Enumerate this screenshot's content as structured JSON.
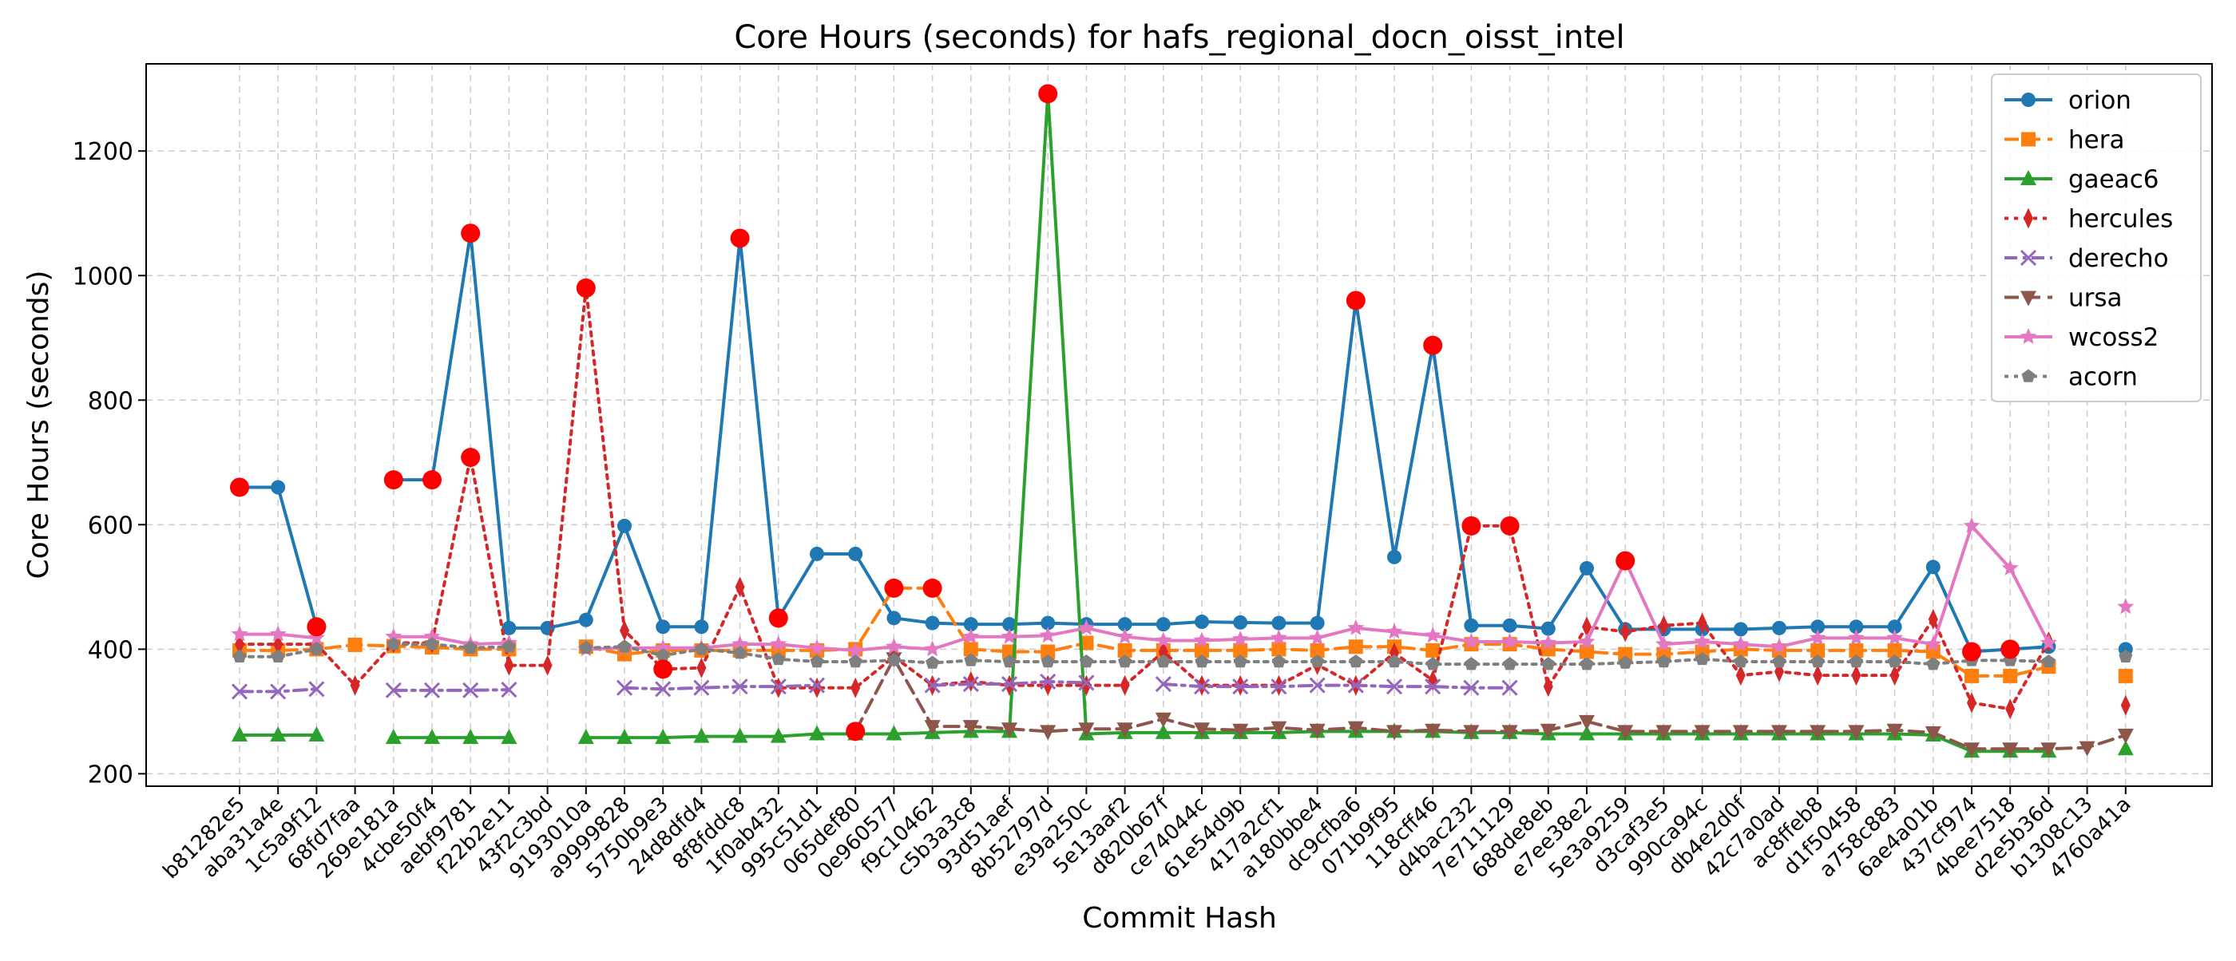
{
  "chart_data": {
    "type": "line",
    "title": "Core Hours (seconds) for hafs_regional_docn_oisst_intel",
    "xlabel": "Commit Hash",
    "ylabel": "Core Hours (seconds)",
    "ylim": [
      180,
      1340
    ],
    "yticks": [
      200,
      400,
      600,
      800,
      1000,
      1200
    ],
    "grid": true,
    "legend_position": "top-right",
    "categories": [
      "b81282e5",
      "aba31a4e",
      "1c5a9f12",
      "68fd7faa",
      "269e181a",
      "4cbe50f4",
      "aebf9781",
      "f22b2e11",
      "43f2c3bd",
      "9193010a",
      "a9999828",
      "5750b9e3",
      "24d8dfd4",
      "8f8fddc8",
      "1f0ab432",
      "995c51d1",
      "065def80",
      "0e960577",
      "f9c10462",
      "c5b3a3c8",
      "93d51aef",
      "8b52797d",
      "e39a250c",
      "5e13aaf2",
      "d820b67f",
      "ce74044c",
      "61e54d9b",
      "417a2cf1",
      "a180bbe4",
      "dc9cfba6",
      "071b9f95",
      "118cff46",
      "d4bac232",
      "7e711129",
      "688de8eb",
      "e7ee38e2",
      "5e3a9259",
      "d3caf3e5",
      "990ca94c",
      "db4e2d0f",
      "42c7a0ad",
      "ac8ffeb8",
      "d1f50458",
      "a758c883",
      "6ae4a01b",
      "437cf974",
      "4bee7518",
      "d2e5b36d",
      "b1308c13",
      "4760a41a"
    ],
    "series": [
      {
        "name": "orion",
        "color": "#1f77b4",
        "dash": "solid",
        "marker": "circle",
        "values": [
          660,
          660,
          436,
          null,
          672,
          672,
          1068,
          434,
          434,
          447,
          598,
          436,
          436,
          1060,
          450,
          553,
          553,
          450,
          442,
          440,
          440,
          442,
          440,
          440,
          440,
          444,
          443,
          442,
          442,
          960,
          548,
          888,
          438,
          438,
          433,
          530,
          432,
          432,
          432,
          432,
          434,
          436,
          436,
          436,
          532,
          396,
          400,
          404,
          null,
          400
        ]
      },
      {
        "name": "hera",
        "color": "#ff7f0e",
        "dash": "dashed",
        "marker": "square",
        "values": [
          398,
          398,
          400,
          407,
          405,
          403,
          400,
          400,
          null,
          404,
          392,
          398,
          398,
          398,
          398,
          398,
          400,
          498,
          498,
          400,
          396,
          396,
          410,
          398,
          398,
          398,
          398,
          400,
          398,
          404,
          404,
          398,
          408,
          408,
          400,
          396,
          392,
          392,
          396,
          400,
          398,
          398,
          398,
          398,
          396,
          357,
          357,
          372,
          null,
          357
        ]
      },
      {
        "name": "gaeac6",
        "color": "#2ca02c",
        "dash": "solid",
        "marker": "triangle-up",
        "values": [
          262,
          262,
          262,
          null,
          258,
          258,
          258,
          258,
          null,
          258,
          258,
          258,
          260,
          260,
          260,
          264,
          264,
          264,
          266,
          268,
          268,
          1292,
          264,
          266,
          266,
          266,
          266,
          266,
          268,
          268,
          268,
          268,
          266,
          266,
          264,
          264,
          264,
          264,
          264,
          264,
          264,
          264,
          264,
          264,
          262,
          236,
          236,
          236,
          null,
          240
        ]
      },
      {
        "name": "hercules",
        "color": "#d62728",
        "dash": "dotted",
        "marker": "diamond",
        "values": [
          408,
          408,
          408,
          342,
          410,
          410,
          708,
          374,
          374,
          980,
          430,
          368,
          370,
          500,
          338,
          338,
          338,
          388,
          342,
          348,
          342,
          342,
          342,
          342,
          396,
          342,
          342,
          342,
          375,
          342,
          394,
          350,
          598,
          598,
          340,
          436,
          428,
          438,
          442,
          358,
          364,
          358,
          358,
          358,
          448,
          314,
          304,
          412,
          null,
          310
        ]
      },
      {
        "name": "derecho",
        "color": "#9467bd",
        "dash": "dashdot",
        "marker": "x",
        "values": [
          332,
          332,
          336,
          null,
          334,
          334,
          334,
          335,
          null,
          null,
          338,
          336,
          338,
          340,
          340,
          342,
          null,
          null,
          342,
          344,
          344,
          348,
          346,
          null,
          344,
          340,
          340,
          340,
          342,
          342,
          340,
          340,
          338,
          338,
          null,
          null,
          null,
          null,
          null,
          null,
          null,
          null,
          null,
          null,
          null,
          null,
          null,
          null,
          null,
          null
        ]
      },
      {
        "name": "ursa",
        "color": "#8c564b",
        "dash": "dashed",
        "marker": "triangle-down",
        "values": [
          null,
          null,
          null,
          null,
          null,
          null,
          null,
          null,
          null,
          null,
          null,
          null,
          null,
          null,
          null,
          null,
          268,
          385,
          276,
          276,
          272,
          268,
          272,
          272,
          288,
          272,
          270,
          274,
          270,
          274,
          268,
          270,
          268,
          268,
          270,
          284,
          268,
          268,
          268,
          268,
          268,
          268,
          268,
          270,
          266,
          240,
          240,
          240,
          242,
          262
        ]
      },
      {
        "name": "wcoss2",
        "color": "#e377c2",
        "dash": "solid",
        "marker": "star",
        "values": [
          424,
          424,
          418,
          null,
          420,
          420,
          408,
          410,
          null,
          400,
          402,
          402,
          402,
          408,
          408,
          402,
          398,
          404,
          400,
          420,
          420,
          422,
          434,
          420,
          414,
          414,
          416,
          418,
          418,
          434,
          428,
          422,
          412,
          412,
          410,
          412,
          542,
          408,
          412,
          408,
          404,
          418,
          418,
          418,
          408,
          598,
          530,
          410,
          null,
          468
        ]
      },
      {
        "name": "acorn",
        "color": "#7f7f7f",
        "dash": "dotted",
        "marker": "pentagon",
        "values": [
          388,
          388,
          400,
          null,
          408,
          408,
          402,
          404,
          null,
          402,
          404,
          390,
          400,
          394,
          384,
          380,
          380,
          382,
          378,
          382,
          380,
          380,
          380,
          380,
          380,
          380,
          380,
          380,
          380,
          380,
          380,
          376,
          376,
          376,
          376,
          376,
          378,
          380,
          384,
          380,
          380,
          380,
          380,
          380,
          376,
          382,
          382,
          380,
          null,
          388
        ]
      }
    ],
    "anomalies": [
      {
        "series": "orion",
        "x": "b81282e5"
      },
      {
        "series": "orion",
        "x": "1c5a9f12"
      },
      {
        "series": "orion",
        "x": "269e181a"
      },
      {
        "series": "orion",
        "x": "4cbe50f4"
      },
      {
        "series": "orion",
        "x": "aebf9781"
      },
      {
        "series": "orion",
        "x": "8f8fddc8"
      },
      {
        "series": "orion",
        "x": "1f0ab432"
      },
      {
        "series": "orion",
        "x": "dc9cfba6"
      },
      {
        "series": "orion",
        "x": "118cff46"
      },
      {
        "series": "orion",
        "x": "437cf974"
      },
      {
        "series": "orion",
        "x": "4bee7518"
      },
      {
        "series": "hera",
        "x": "0e960577"
      },
      {
        "series": "hera",
        "x": "f9c10462"
      },
      {
        "series": "hercules",
        "x": "aebf9781"
      },
      {
        "series": "hercules",
        "x": "9193010a"
      },
      {
        "series": "hercules",
        "x": "5750b9e3"
      },
      {
        "series": "hercules",
        "x": "d4bac232"
      },
      {
        "series": "hercules",
        "x": "7e711129"
      },
      {
        "series": "ursa",
        "x": "065def80"
      },
      {
        "series": "gaeac6",
        "x": "8b52797d"
      },
      {
        "series": "wcoss2",
        "x": "5e3a9259"
      }
    ]
  }
}
